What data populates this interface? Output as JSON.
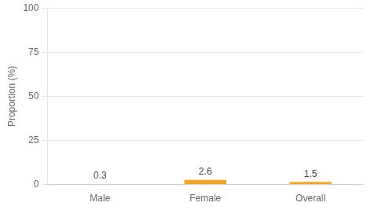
{
  "chart_data": {
    "type": "bar",
    "categories": [
      "Male",
      "Female",
      "Overall"
    ],
    "values": [
      0.3,
      2.6,
      1.5
    ],
    "color": "#F5A623",
    "ylabel": "Proportion (%)",
    "ylim": [
      0,
      100
    ],
    "yticks": [
      0,
      25,
      50,
      75,
      100
    ],
    "grid": true,
    "data_labels": true
  }
}
